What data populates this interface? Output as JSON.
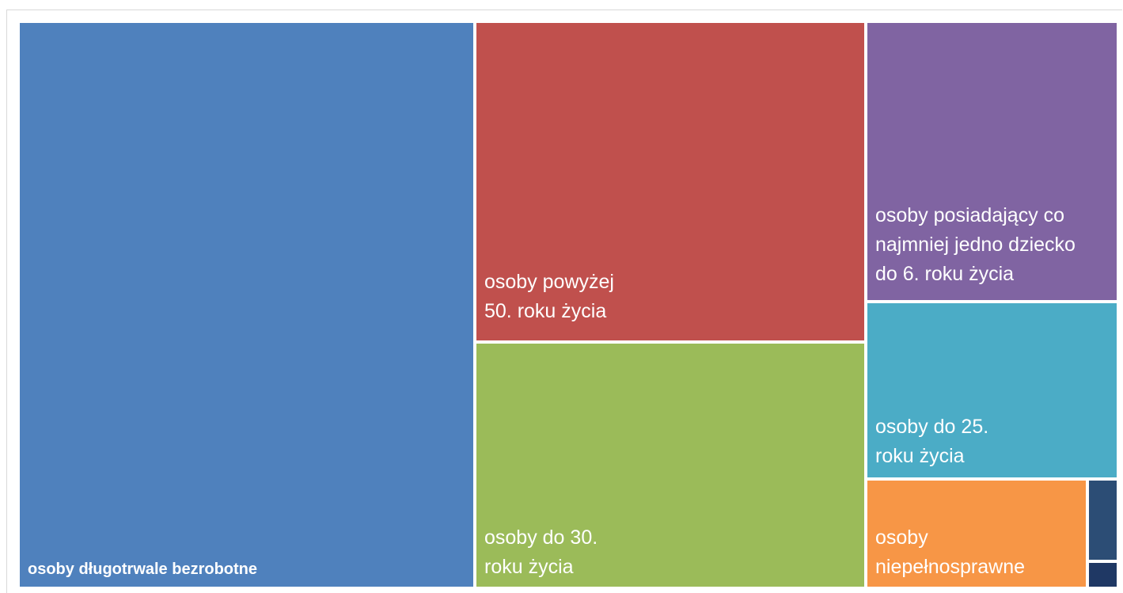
{
  "chart_data": {
    "type": "treemap",
    "title": "",
    "categories": [
      "osoby długotrwale bezrobotne",
      "osoby powyżej 50. roku życia",
      "osoby do 30. roku życia",
      "osoby posiadający co najmniej jedno dziecko do 6. roku życia",
      "osoby do 25. roku życia",
      "osoby niepełnosprawne",
      "",
      ""
    ],
    "values": [
      41.4,
      20.1,
      15.3,
      12.6,
      7.8,
      2.0,
      0.5,
      0.3
    ],
    "tiles": [
      {
        "label": "osoby długotrwale bezrobotne",
        "value": 41.4,
        "color": "#4F81BD",
        "bold": true
      },
      {
        "label": "osoby powyżej\n50. roku życia",
        "value": 20.1,
        "color": "#C0504D",
        "bold": false
      },
      {
        "label": "osoby do 30.\nroku życia",
        "value": 15.3,
        "color": "#9BBB59",
        "bold": false
      },
      {
        "label": "osoby posiadający co\nnajmniej jedno dziecko\ndo 6. roku życia",
        "value": 12.6,
        "color": "#8064A2",
        "bold": false
      },
      {
        "label": "osoby do 25.\nroku życia",
        "value": 7.8,
        "color": "#4BACC6",
        "bold": false
      },
      {
        "label": "osoby\nniepełnosprawne",
        "value": 2.0,
        "color": "#F79646",
        "bold": false
      },
      {
        "label": "",
        "value": 0.5,
        "color": "#2C4D75",
        "bold": false
      },
      {
        "label": "",
        "value": 0.3,
        "color": "#1F3864",
        "bold": false
      }
    ]
  }
}
